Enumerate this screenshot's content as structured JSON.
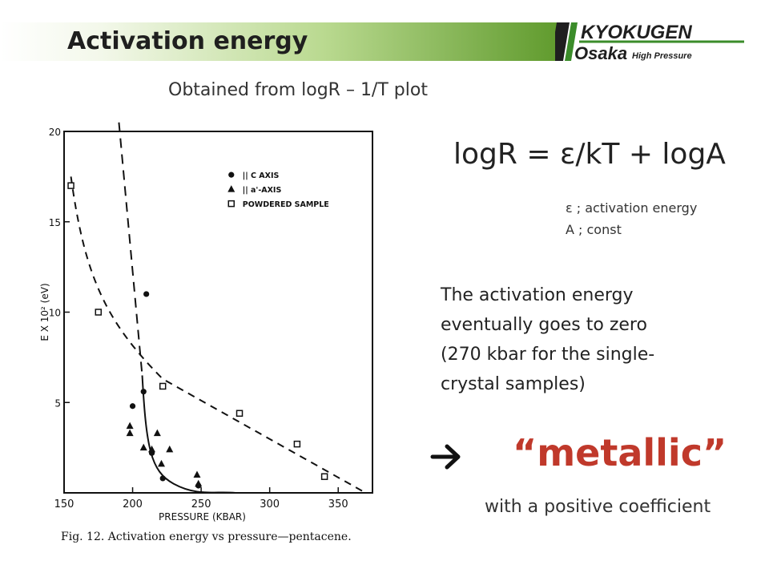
{
  "header": {
    "title": "Activation energy",
    "logo_line1": "KYOKUGEN",
    "logo_line2": "Osaka",
    "logo_sub": "High Pressure",
    "accent_color": "#5f9a2c"
  },
  "subtitle": "Obtained from logR – 1/T plot",
  "equation": "logR = ε/kT + logA",
  "definitions": [
    "ε ; activation energy",
    "A ; const"
  ],
  "description_lines": [
    "The activation energy",
    "eventually goes to zero",
    "(270 kbar for the single-",
    "crystal samples)"
  ],
  "conclusion": {
    "arrow_icon": "right-arrow-icon",
    "metallic": "“metallic”",
    "metallic_color": "#c0392b",
    "note": "with a positive coefficient"
  },
  "figure": {
    "caption": "Fig. 12. Activation energy vs pressure—pentacene.",
    "chart_data": {
      "type": "scatter",
      "xlabel": "PRESSURE (KBAR)",
      "ylabel": "E X 10² (eV)",
      "xlim": [
        150,
        375
      ],
      "ylim": [
        0,
        20
      ],
      "x_ticks": [
        "150",
        "200",
        "250",
        "300",
        "350"
      ],
      "y_ticks": [
        "5",
        "10",
        "15",
        "20"
      ],
      "legend_position": "top-right",
      "series": [
        {
          "name": "|| C AXIS",
          "marker": "circle",
          "x": [
            200,
            208,
            210,
            214,
            222,
            248
          ],
          "y": [
            4.8,
            5.6,
            11.0,
            2.2,
            0.8,
            0.4
          ]
        },
        {
          "name": "|| a'-AXIS",
          "marker": "triangle",
          "x": [
            198,
            198,
            208,
            214,
            218,
            221,
            227,
            247,
            248
          ],
          "y": [
            3.7,
            3.3,
            2.5,
            2.4,
            3.3,
            1.6,
            2.4,
            1.0,
            0.5
          ]
        },
        {
          "name": "POWDERED SAMPLE",
          "marker": "square",
          "x": [
            155,
            175,
            222,
            278,
            320,
            340
          ],
          "y": [
            17.0,
            10.0,
            5.9,
            4.4,
            2.7,
            0.9
          ]
        }
      ]
    }
  }
}
